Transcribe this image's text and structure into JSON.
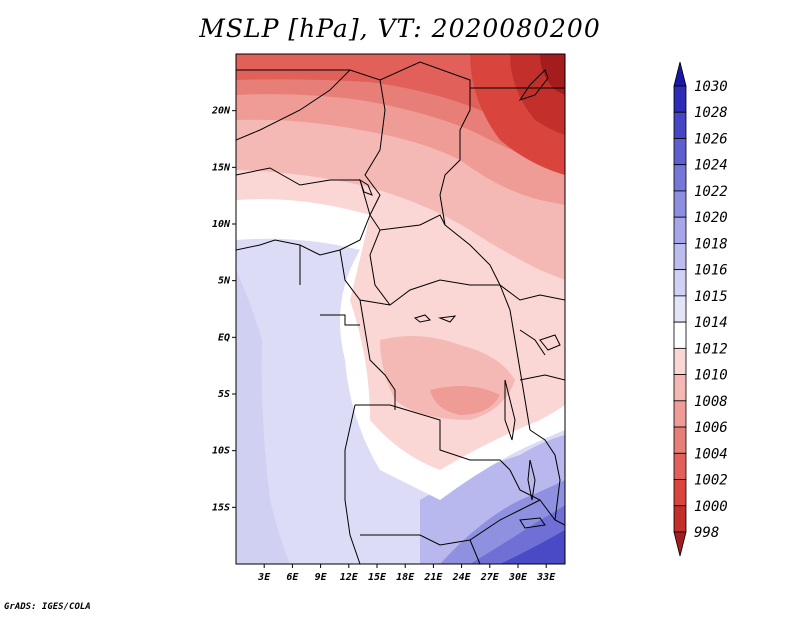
{
  "title": "MSLP [hPa], VT: 2020080200",
  "credit": "GrADS: IGES/COLA",
  "map": {
    "lat_labels": [
      "20N",
      "15N",
      "10N",
      "5N",
      "EQ",
      "5S",
      "10S",
      "15S"
    ],
    "lat_values": [
      20,
      15,
      10,
      5,
      0,
      -5,
      -10,
      -15
    ],
    "lon_labels": [
      "3E",
      "6E",
      "9E",
      "12E",
      "15E",
      "18E",
      "21E",
      "24E",
      "27E",
      "30E",
      "33E"
    ],
    "lon_values": [
      3,
      6,
      9,
      12,
      15,
      18,
      21,
      24,
      27,
      30,
      33
    ],
    "lon_range": [
      0,
      35
    ],
    "lat_range": [
      -20,
      25
    ]
  },
  "colorbar": {
    "levels": [
      "998",
      "1000",
      "1002",
      "1004",
      "1006",
      "1008",
      "1010",
      "1012",
      "1014",
      "1015",
      "1016",
      "1018",
      "1020",
      "1022",
      "1024",
      "1026",
      "1028",
      "1030"
    ],
    "colors": [
      "#a51c1f",
      "#c3302c",
      "#d9453d",
      "#e2605a",
      "#e87e78",
      "#ef9c96",
      "#f5b9b5",
      "#fad6d4",
      "#ffffff",
      "#e4e4f8",
      "#d1d1f4",
      "#bcbcef",
      "#a6a6e9",
      "#8f8fe2",
      "#7777da",
      "#5f5fd1",
      "#4646c5",
      "#2d2db8",
      "#1717a8"
    ]
  },
  "colors": {
    "land_fill_mid": "#f2b4ae",
    "ocean_fill": "#d9d9f5",
    "border": "#000000"
  }
}
